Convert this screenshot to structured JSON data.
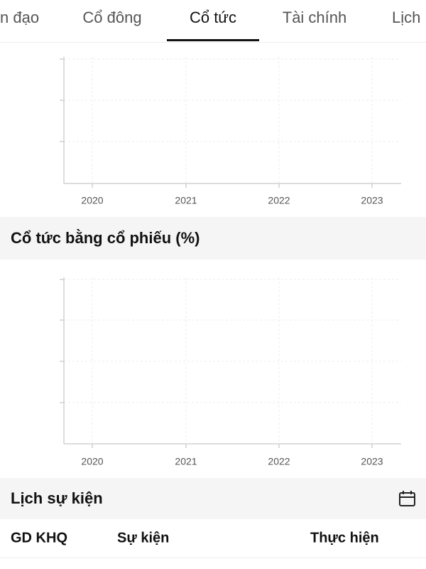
{
  "tabs": [
    {
      "label": "n đạo"
    },
    {
      "label": "Cổ đông"
    },
    {
      "label": "Cổ tức",
      "active": true
    },
    {
      "label": "Tài chính"
    },
    {
      "label": "Lịch"
    }
  ],
  "charts": [
    {
      "categories": [
        "2020",
        "2021",
        "2022",
        "2023"
      ]
    },
    {
      "title": "Cổ tức bằng cổ phiếu (%)",
      "categories": [
        "2020",
        "2021",
        "2022",
        "2023"
      ]
    }
  ],
  "events": {
    "title": "Lịch sự kiện",
    "columns": [
      "GD KHQ",
      "Sự kiện",
      "Thực hiện"
    ]
  }
}
